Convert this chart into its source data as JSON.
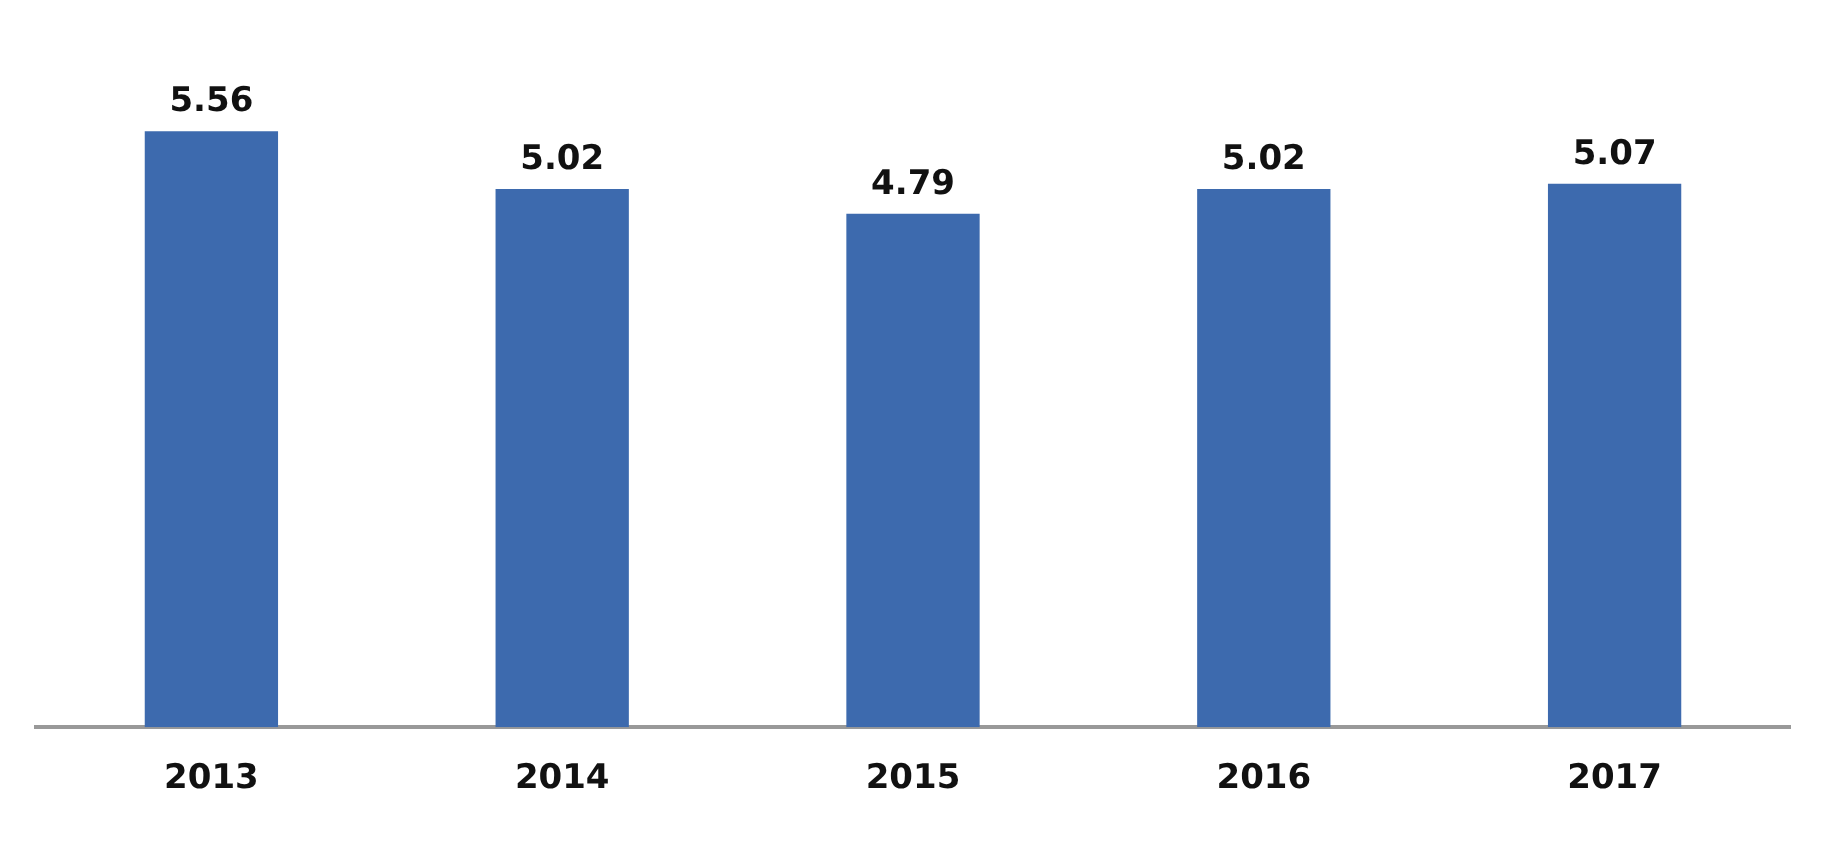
{
  "chart_data": {
    "type": "bar",
    "categories": [
      "2013",
      "2014",
      "2015",
      "2016",
      "2017"
    ],
    "values": [
      5.56,
      5.02,
      4.79,
      5.02,
      5.07
    ],
    "color": "#3d6aae",
    "data_labels": true,
    "grid": false,
    "legend": false
  }
}
